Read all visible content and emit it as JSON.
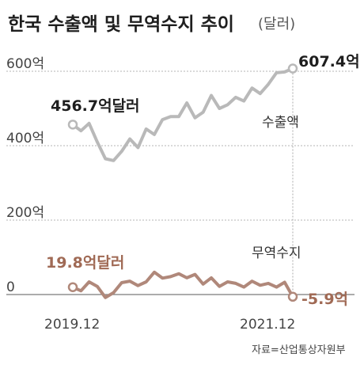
{
  "chart_data": {
    "type": "line",
    "title": "한국 수출액 및 무역수지 추이",
    "subtitle": "(달러)",
    "source": "자료=산업통상자원부",
    "ylim": [
      0,
      620
    ],
    "yticks": [
      {
        "value": 600,
        "label": "600억"
      },
      {
        "value": 400,
        "label": "400억"
      },
      {
        "value": 200,
        "label": "200억"
      },
      {
        "value": 0,
        "label": "0"
      }
    ],
    "x_axis_labels": [
      "2019.12",
      "2021.12"
    ],
    "colors": {
      "export": "#b9b9b9",
      "balance": "#b0887a",
      "text_accent": "#a06a55",
      "axis": "#888888"
    },
    "series": [
      {
        "name": "수출액",
        "start_label": "456.7억달러",
        "end_value_label": "607.4억",
        "values": [
          456.7,
          440,
          460,
          410,
          365,
          360,
          385,
          418,
          395,
          445,
          430,
          470,
          478,
          478,
          515,
          475,
          490,
          535,
          500,
          510,
          530,
          520,
          555,
          540,
          565,
          596,
          598,
          607.4
        ]
      },
      {
        "name": "무역수지",
        "start_label": "19.8억달러",
        "end_value_label": "-5.9억",
        "values": [
          19.8,
          10,
          34,
          22,
          -8,
          5,
          32,
          36,
          24,
          34,
          60,
          44,
          48,
          56,
          45,
          54,
          28,
          45,
          22,
          34,
          30,
          20,
          36,
          25,
          30,
          20,
          33,
          -5.9
        ]
      }
    ]
  }
}
